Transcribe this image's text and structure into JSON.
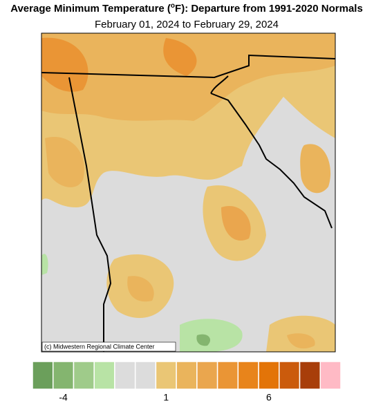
{
  "header": {
    "title_before": "Average Minimum Temperature (",
    "title_superscript": "o",
    "title_after": "F): Departure from 1991-2020 Normals",
    "subtitle": "February 01, 2024 to February 29, 2024"
  },
  "map": {
    "credit": "(c) Midwestern Regional Climate Center"
  },
  "legend": {
    "colors": [
      "#6b9f5b",
      "#84b56f",
      "#9fcb8a",
      "#b8e3a5",
      "#dcdcdc",
      "#dcdcdc",
      "#eac675",
      "#eab45c",
      "#eaa64e",
      "#ea9535",
      "#e8841b",
      "#e37408",
      "#cb5b0c",
      "#a83e0a",
      "#ffbac5"
    ],
    "labels": [
      -4,
      1,
      6
    ]
  }
}
